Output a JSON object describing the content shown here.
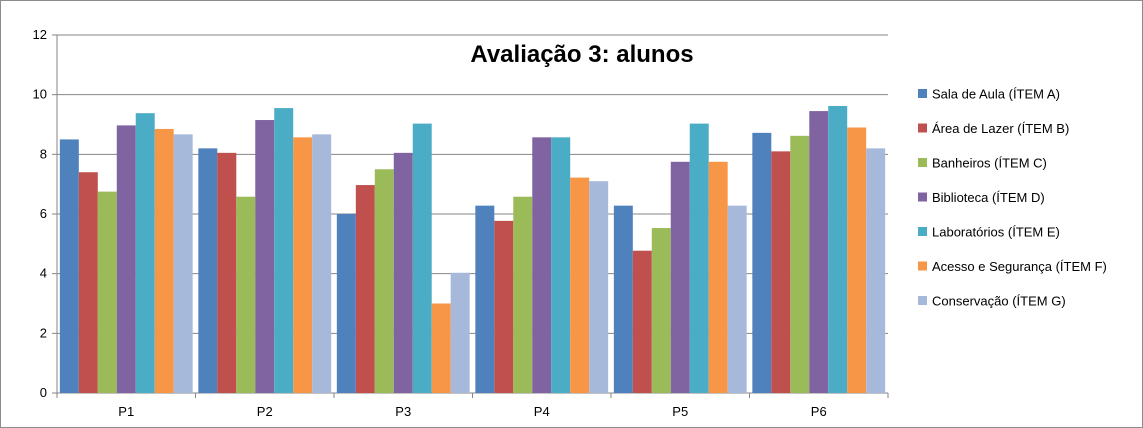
{
  "chart_data": {
    "type": "bar",
    "title": "Avaliação 3: alunos",
    "categories": [
      "P1",
      "P2",
      "P3",
      "P4",
      "P5",
      "P6"
    ],
    "ylim": [
      0,
      12
    ],
    "yticks": [
      0,
      2,
      4,
      6,
      8,
      10,
      12
    ],
    "grid": "horizontal",
    "legend_position": "right",
    "series": [
      {
        "name": "Sala de Aula (ÍTEM A)",
        "color": "#4F81BD",
        "values": [
          8.5,
          8.2,
          6.0,
          6.28,
          6.28,
          8.72
        ]
      },
      {
        "name": "Área de Lazer (ÍTEM B)",
        "color": "#C0504D",
        "values": [
          7.4,
          8.05,
          6.97,
          5.77,
          4.77,
          8.1
        ]
      },
      {
        "name": "Banheiros (ÍTEM C)",
        "color": "#9BBB59",
        "values": [
          6.75,
          6.58,
          7.5,
          6.58,
          5.53,
          8.62
        ]
      },
      {
        "name": "Biblioteca (ÍTEM D)",
        "color": "#8064A2",
        "values": [
          8.97,
          9.15,
          8.05,
          8.57,
          7.75,
          9.45
        ]
      },
      {
        "name": "Laboratórios (ÍTEM E)",
        "color": "#4BACC6",
        "values": [
          9.38,
          9.55,
          9.03,
          8.57,
          9.03,
          9.62
        ]
      },
      {
        "name": "Acesso e Segurança (ÍTEM F)",
        "color": "#F79646",
        "values": [
          8.85,
          8.57,
          3.0,
          7.22,
          7.75,
          8.9
        ]
      },
      {
        "name": "Conservação (ÍTEM G)",
        "color": "#A6B9DB",
        "values": [
          8.67,
          8.67,
          4.03,
          7.1,
          6.28,
          8.2
        ]
      }
    ]
  }
}
